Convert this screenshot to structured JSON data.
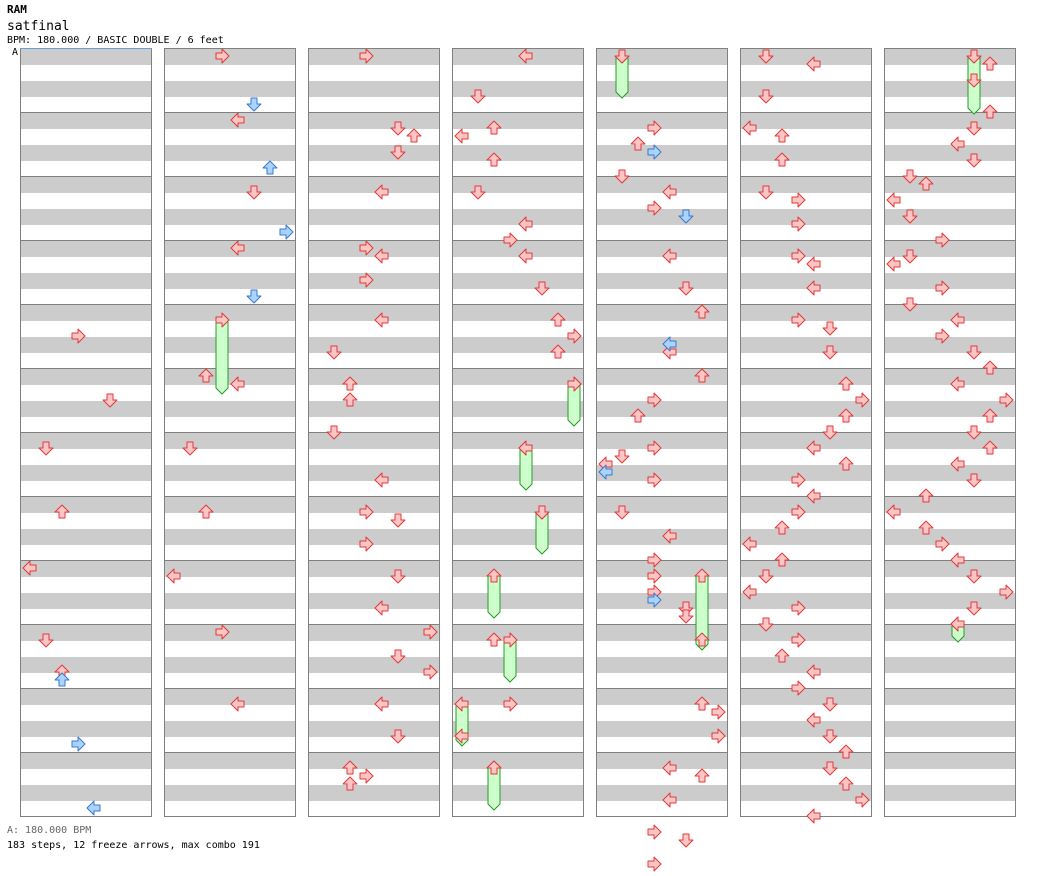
{
  "header": {
    "title": "RAM",
    "song": "satfinal",
    "info": "BPM: 180.000 / BASIC DOUBLE / 6 feet",
    "marker": "A"
  },
  "footer": {
    "bpm_legend": "A: 180.000 BPM",
    "stats": "183 steps, 12 freeze arrows, max combo 191"
  },
  "colors": {
    "red_fill": "#ffc4c4",
    "red_stroke": "#dd3b3b",
    "blue_fill": "#aad4ff",
    "blue_stroke": "#3a78c8",
    "freeze_fill": "#ccffcc",
    "freeze_stroke": "#2a9a2a",
    "stripe": "#cccccc"
  },
  "chart_data": {
    "type": "step-chart",
    "measures_per_column": 12,
    "lanes": [
      "P1-left",
      "P1-down",
      "P1-up",
      "P1-right",
      "P2-left",
      "P2-down",
      "P2-up",
      "P2-right"
    ],
    "beat_unit": "1/8 measure (eighth note)",
    "notes": {
      "red": [
        [
          0,
          35,
          3
        ],
        [
          0,
          43,
          5
        ],
        [
          0,
          49,
          1
        ],
        [
          0,
          57,
          2
        ],
        [
          0,
          64,
          0
        ],
        [
          0,
          73,
          1
        ],
        [
          0,
          77,
          2
        ],
        [
          1,
          0,
          3
        ],
        [
          1,
          8,
          4
        ],
        [
          1,
          17,
          5
        ],
        [
          1,
          24,
          4
        ],
        [
          1,
          40,
          2
        ],
        [
          1,
          41,
          4
        ],
        [
          1,
          49,
          1
        ],
        [
          1,
          57,
          2
        ],
        [
          1,
          65,
          0
        ],
        [
          1,
          72,
          3
        ],
        [
          1,
          81,
          4
        ],
        [
          2,
          0,
          3
        ],
        [
          2,
          9,
          5
        ],
        [
          2,
          10,
          6
        ],
        [
          2,
          12,
          5
        ],
        [
          2,
          17,
          4
        ],
        [
          2,
          24,
          3
        ],
        [
          2,
          25,
          4
        ],
        [
          2,
          28,
          3
        ],
        [
          2,
          33,
          4
        ],
        [
          2,
          37,
          1
        ],
        [
          2,
          41,
          2
        ],
        [
          2,
          43,
          2
        ],
        [
          2,
          47,
          1
        ],
        [
          2,
          53,
          4
        ],
        [
          2,
          57,
          3
        ],
        [
          2,
          58,
          5
        ],
        [
          2,
          61,
          3
        ],
        [
          2,
          65,
          5
        ],
        [
          2,
          69,
          4
        ],
        [
          2,
          72,
          7
        ],
        [
          2,
          75,
          5
        ],
        [
          2,
          77,
          7
        ],
        [
          2,
          81,
          4
        ],
        [
          2,
          85,
          5
        ],
        [
          2,
          89,
          2
        ],
        [
          2,
          90,
          3
        ],
        [
          2,
          91,
          2
        ],
        [
          3,
          0,
          4
        ],
        [
          3,
          5,
          1
        ],
        [
          3,
          9,
          2
        ],
        [
          3,
          10,
          0
        ],
        [
          3,
          13,
          2
        ],
        [
          3,
          17,
          1
        ],
        [
          3,
          21,
          4
        ],
        [
          3,
          23,
          3
        ],
        [
          3,
          25,
          4
        ],
        [
          3,
          29,
          5
        ],
        [
          3,
          33,
          6
        ],
        [
          3,
          35,
          7
        ],
        [
          3,
          37,
          6
        ],
        [
          3,
          41,
          7
        ],
        [
          3,
          49,
          4
        ],
        [
          3,
          57,
          5
        ],
        [
          3,
          73,
          2
        ],
        [
          3,
          81,
          3
        ],
        [
          3,
          85,
          0
        ],
        [
          3,
          89,
          2
        ],
        [
          4,
          0,
          1
        ],
        [
          4,
          9,
          3
        ],
        [
          4,
          11,
          2
        ],
        [
          4,
          15,
          1
        ],
        [
          4,
          17,
          4
        ],
        [
          4,
          19,
          3
        ],
        [
          4,
          25,
          4
        ],
        [
          4,
          29,
          5
        ],
        [
          4,
          32,
          6
        ],
        [
          4,
          37,
          4
        ],
        [
          4,
          40,
          6
        ],
        [
          4,
          43,
          3
        ],
        [
          4,
          45,
          2
        ],
        [
          4,
          49,
          3
        ],
        [
          4,
          50,
          1
        ],
        [
          4,
          51,
          0
        ],
        [
          4,
          53,
          3
        ],
        [
          4,
          57,
          1
        ],
        [
          4,
          60,
          4
        ],
        [
          4,
          63,
          3
        ],
        [
          4,
          65,
          3
        ],
        [
          4,
          67,
          3
        ],
        [
          4,
          69,
          5
        ],
        [
          4,
          70,
          5
        ],
        [
          4,
          73,
          6
        ],
        [
          4,
          81,
          6
        ],
        [
          4,
          82,
          7
        ],
        [
          4,
          85,
          7
        ],
        [
          4,
          89,
          4
        ],
        [
          4,
          90,
          6
        ],
        [
          4,
          93,
          4
        ],
        [
          4,
          97,
          3
        ],
        [
          4,
          98,
          5
        ],
        [
          4,
          101,
          3
        ],
        [
          5,
          0,
          1
        ],
        [
          5,
          1,
          4
        ],
        [
          5,
          5,
          1
        ],
        [
          5,
          9,
          0
        ],
        [
          5,
          10,
          2
        ],
        [
          5,
          13,
          2
        ],
        [
          5,
          17,
          1
        ],
        [
          5,
          18,
          3
        ],
        [
          5,
          21,
          3
        ],
        [
          5,
          25,
          3
        ],
        [
          5,
          26,
          4
        ],
        [
          5,
          29,
          4
        ],
        [
          5,
          33,
          3
        ],
        [
          5,
          34,
          5
        ],
        [
          5,
          37,
          5
        ],
        [
          5,
          41,
          6
        ],
        [
          5,
          43,
          7
        ],
        [
          5,
          45,
          6
        ],
        [
          5,
          47,
          5
        ],
        [
          5,
          49,
          4
        ],
        [
          5,
          51,
          6
        ],
        [
          5,
          53,
          3
        ],
        [
          5,
          55,
          4
        ],
        [
          5,
          57,
          3
        ],
        [
          5,
          59,
          2
        ],
        [
          5,
          61,
          0
        ],
        [
          5,
          63,
          2
        ],
        [
          5,
          65,
          1
        ],
        [
          5,
          67,
          0
        ],
        [
          5,
          69,
          3
        ],
        [
          5,
          71,
          1
        ],
        [
          5,
          73,
          3
        ],
        [
          5,
          75,
          2
        ],
        [
          5,
          77,
          4
        ],
        [
          5,
          79,
          3
        ],
        [
          5,
          81,
          5
        ],
        [
          5,
          83,
          4
        ],
        [
          5,
          85,
          5
        ],
        [
          5,
          87,
          6
        ],
        [
          5,
          89,
          5
        ],
        [
          5,
          91,
          6
        ],
        [
          5,
          93,
          7
        ],
        [
          5,
          95,
          4
        ],
        [
          6,
          0,
          5
        ],
        [
          6,
          1,
          6
        ],
        [
          6,
          3,
          5
        ],
        [
          6,
          7,
          6
        ],
        [
          6,
          9,
          5
        ],
        [
          6,
          11,
          4
        ],
        [
          6,
          13,
          5
        ],
        [
          6,
          15,
          1
        ],
        [
          6,
          16,
          2
        ],
        [
          6,
          18,
          0
        ],
        [
          6,
          20,
          1
        ],
        [
          6,
          23,
          3
        ],
        [
          6,
          25,
          1
        ],
        [
          6,
          26,
          0
        ],
        [
          6,
          29,
          3
        ],
        [
          6,
          31,
          1
        ],
        [
          6,
          33,
          4
        ],
        [
          6,
          35,
          3
        ],
        [
          6,
          37,
          5
        ],
        [
          6,
          39,
          6
        ],
        [
          6,
          41,
          4
        ],
        [
          6,
          43,
          7
        ],
        [
          6,
          45,
          6
        ],
        [
          6,
          47,
          5
        ],
        [
          6,
          49,
          6
        ],
        [
          6,
          51,
          4
        ],
        [
          6,
          53,
          5
        ],
        [
          6,
          55,
          2
        ],
        [
          6,
          57,
          0
        ],
        [
          6,
          59,
          2
        ],
        [
          6,
          61,
          3
        ],
        [
          6,
          63,
          4
        ],
        [
          6,
          65,
          5
        ],
        [
          6,
          67,
          7
        ],
        [
          6,
          69,
          5
        ],
        [
          6,
          71,
          4
        ]
      ],
      "blue": [
        [
          0,
          78,
          2
        ],
        [
          0,
          86,
          3
        ],
        [
          0,
          94,
          4
        ],
        [
          1,
          6,
          5
        ],
        [
          1,
          14,
          6
        ],
        [
          1,
          22,
          7
        ],
        [
          1,
          30,
          5
        ],
        [
          4,
          12,
          3
        ],
        [
          4,
          20,
          5
        ],
        [
          4,
          36,
          4
        ],
        [
          4,
          52,
          0
        ],
        [
          4,
          68,
          3
        ]
      ],
      "freeze": [
        [
          1,
          33,
          3,
          42
        ],
        [
          3,
          41,
          7,
          46
        ],
        [
          3,
          49,
          4,
          54
        ],
        [
          3,
          57,
          5,
          62
        ],
        [
          3,
          65,
          2,
          70
        ],
        [
          3,
          73,
          3,
          78
        ],
        [
          3,
          81,
          0,
          86
        ],
        [
          3,
          89,
          2,
          94
        ],
        [
          4,
          0,
          1,
          5
        ],
        [
          4,
          65,
          6,
          74
        ],
        [
          6,
          0,
          5,
          7
        ],
        [
          6,
          71,
          4,
          73
        ]
      ]
    }
  }
}
